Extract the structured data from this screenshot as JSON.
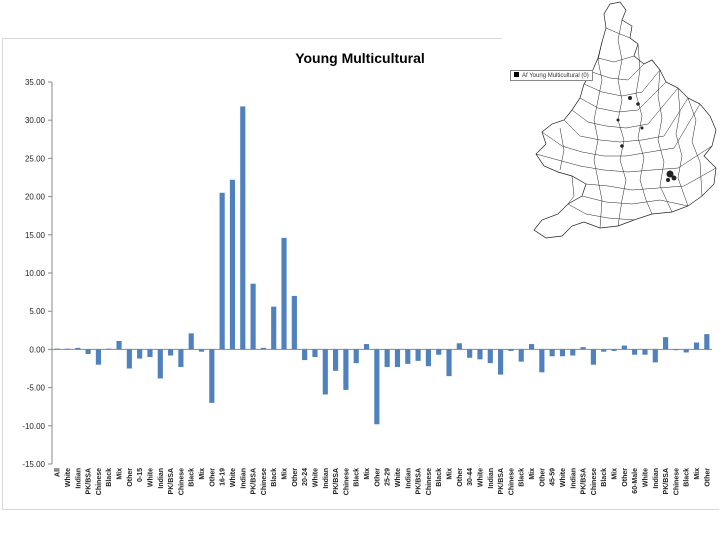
{
  "chart_data": {
    "type": "bar",
    "title": "Young Multicultural",
    "ylim": [
      -15,
      35
    ],
    "yticks": [
      "35.00",
      "30.00",
      "25.00",
      "20.00",
      "15.00",
      "10.00",
      "5.00",
      "0.00",
      "-5.00",
      "-10.00",
      "-15.00"
    ],
    "categories": [
      "All",
      "White",
      "Indian",
      "PK/BSA",
      "Chinese",
      "Black",
      "Mix",
      "Other",
      "0-15",
      "White",
      "Indian",
      "PK/BSA",
      "Chinese",
      "Black",
      "Mix",
      "Other",
      "16-19",
      "White",
      "Indian",
      "PK/BSA",
      "Chinese",
      "Black",
      "Mix",
      "Other",
      "20-24",
      "White",
      "Indian",
      "PK/BSA",
      "Chinese",
      "Black",
      "Mix",
      "Other",
      "25-29",
      "White",
      "Indian",
      "PK/BSA",
      "Chinese",
      "Black",
      "Mix",
      "Other",
      "30-44",
      "White",
      "Indian",
      "PK/BSA",
      "Chinese",
      "Black",
      "Mix",
      "Other",
      "45-59",
      "White",
      "Indian",
      "PK/BSA",
      "Chinese",
      "Black",
      "Mix",
      "Other",
      "60-Male",
      "White",
      "Indian",
      "PK/BSA",
      "Chinese",
      "Black",
      "Mix",
      "Other"
    ],
    "values": [
      0.1,
      0.1,
      0.2,
      -0.6,
      -2.0,
      0.1,
      1.1,
      -2.5,
      -1.2,
      -1.0,
      -3.8,
      -0.8,
      -2.3,
      2.1,
      -0.3,
      -7.0,
      20.5,
      22.2,
      31.8,
      8.6,
      0.2,
      5.6,
      14.6,
      7.0,
      -1.4,
      -1.0,
      -5.9,
      -2.8,
      -5.3,
      -1.8,
      0.7,
      -9.8,
      -2.3,
      -2.3,
      -1.9,
      -1.5,
      -2.2,
      -0.7,
      -3.5,
      0.8,
      -1.1,
      -1.3,
      -1.8,
      -3.3,
      -0.2,
      -1.6,
      0.7,
      -3.0,
      -0.9,
      -0.9,
      -0.8,
      0.3,
      -2.0,
      -0.3,
      -0.2,
      0.5,
      -0.7,
      -0.7,
      -1.7,
      1.6,
      -0.1,
      -0.4,
      0.9,
      2.0
    ],
    "bar_color": "#4f81bd",
    "grid": false,
    "legend": "none"
  },
  "map": {
    "legend_label": "Af Young Multicultural (0)",
    "icon": "england-wales-map"
  }
}
